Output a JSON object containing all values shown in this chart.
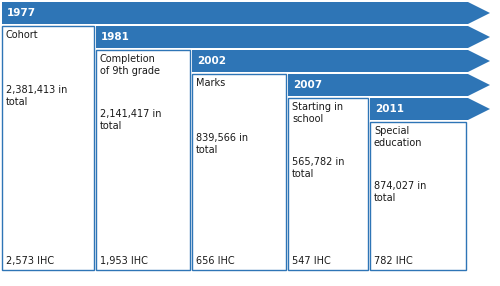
{
  "steps": [
    {
      "year": "1977",
      "label": "Cohort",
      "total": "2,381,413 in\ntotal",
      "ihc": "2,573 IHC"
    },
    {
      "year": "1981",
      "label": "Completion\nof 9th grade",
      "total": "2,141,417 in\ntotal",
      "ihc": "1,953 IHC"
    },
    {
      "year": "2002",
      "label": "Marks",
      "total": "839,566 in\ntotal",
      "ihc": "656 IHC"
    },
    {
      "year": "2007",
      "label": "Starting in\nschool",
      "total": "565,782 in\ntotal",
      "ihc": "547 IHC"
    },
    {
      "year": "2011",
      "label": "Special\neducation",
      "total": "874,027 in\ntotal",
      "ihc": "782 IHC"
    }
  ],
  "arrow_color": "#2E75B6",
  "arrow_color_light": "#4472C4",
  "white": "#FFFFFF",
  "dark": "#1A1A1A",
  "box_edge": "#2E75B6",
  "bg": "#FFFFFF",
  "n_steps": 5,
  "fig_w": 5.0,
  "fig_h": 2.86
}
